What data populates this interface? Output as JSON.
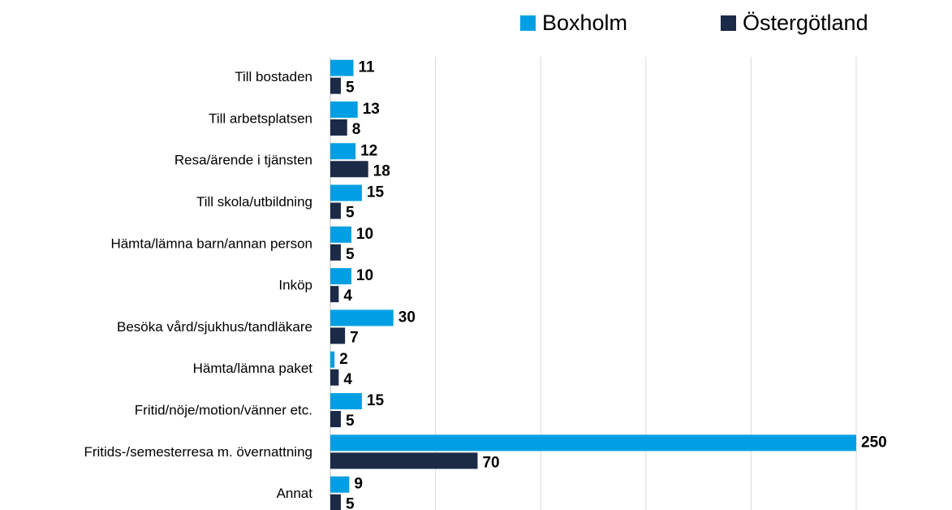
{
  "chart_data": {
    "type": "barh",
    "categories": [
      "Till bostaden",
      "Till arbetsplatsen",
      "Resa/ärende i tjänsten",
      "Till skola/utbildning",
      "Hämta/lämna barn/annan person",
      "Inköp",
      "Besöka vård/sjukhus/tandläkare",
      "Hämta/lämna paket",
      "Fritid/nöje/motion/vänner etc.",
      "Fritids-/semesterresa m. övernattning",
      "Annat"
    ],
    "series": [
      {
        "name": "Boxholm",
        "color": "#009fe3",
        "values": [
          11,
          13,
          12,
          15,
          10,
          10,
          30,
          2,
          15,
          250,
          9
        ]
      },
      {
        "name": "Östergötland",
        "color": "#1b2a47",
        "values": [
          5,
          8,
          18,
          5,
          5,
          4,
          7,
          4,
          5,
          70,
          5
        ]
      }
    ],
    "xlim": [
      0,
      250
    ],
    "xticks": [
      0,
      50,
      100,
      150,
      200,
      250
    ],
    "grid": true,
    "legend": "top-right"
  }
}
